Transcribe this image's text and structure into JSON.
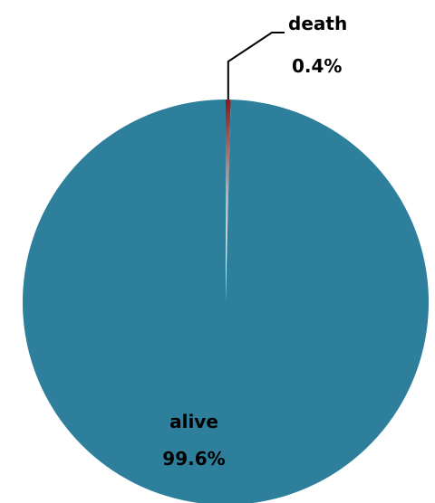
{
  "chart_data": {
    "type": "pie",
    "title": "",
    "slices": [
      {
        "label": "death",
        "value": 0.4,
        "value_label": "0.4%",
        "color": "#8B1A1A"
      },
      {
        "label": "alive",
        "value": 99.6,
        "value_label": "99.6%",
        "color": "#2E7F9B"
      }
    ],
    "start_angle": "12 o'clock",
    "direction": "clockwise",
    "legend": "none",
    "label_color": "#000000"
  }
}
